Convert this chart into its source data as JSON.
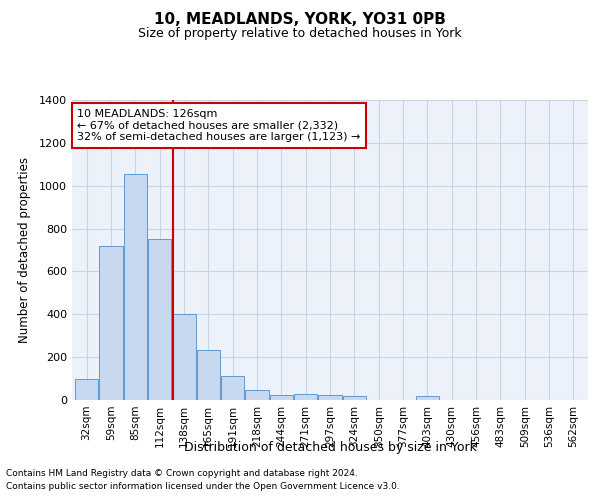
{
  "title": "10, MEADLANDS, YORK, YO31 0PB",
  "subtitle": "Size of property relative to detached houses in York",
  "xlabel": "Distribution of detached houses by size in York",
  "ylabel": "Number of detached properties",
  "categories": [
    "32sqm",
    "59sqm",
    "85sqm",
    "112sqm",
    "138sqm",
    "165sqm",
    "191sqm",
    "218sqm",
    "244sqm",
    "271sqm",
    "297sqm",
    "324sqm",
    "350sqm",
    "377sqm",
    "403sqm",
    "430sqm",
    "456sqm",
    "483sqm",
    "509sqm",
    "536sqm",
    "562sqm"
  ],
  "values": [
    100,
    720,
    1055,
    750,
    400,
    235,
    110,
    45,
    25,
    30,
    25,
    18,
    0,
    0,
    18,
    0,
    0,
    0,
    0,
    0,
    0
  ],
  "bar_color": "#c8d9ef",
  "bar_edge_color": "#5b9bd5",
  "grid_color": "#c8d4e8",
  "bg_color": "#edf1f9",
  "vline_color": "#cc0000",
  "annotation_text": "10 MEADLANDS: 126sqm\n← 67% of detached houses are smaller (2,332)\n32% of semi-detached houses are larger (1,123) →",
  "annotation_box_color": "#ffffff",
  "annotation_box_edge": "#cc0000",
  "ylim": [
    0,
    1400
  ],
  "yticks": [
    0,
    200,
    400,
    600,
    800,
    1000,
    1200,
    1400
  ],
  "footer_line1": "Contains HM Land Registry data © Crown copyright and database right 2024.",
  "footer_line2": "Contains public sector information licensed under the Open Government Licence v3.0."
}
